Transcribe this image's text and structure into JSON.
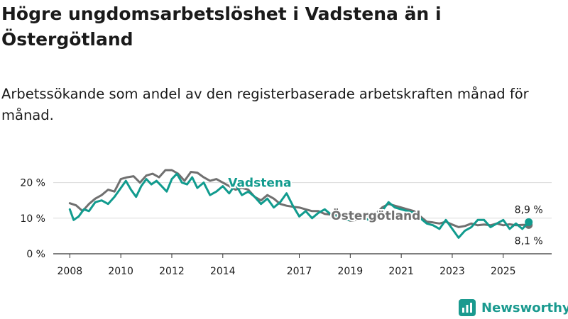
{
  "title": "Högre ungdomsarbetslöshet i Vadstena än i Östergötland",
  "subtitle": "Arbetssökande som andel av den registerbaserade arbetskraften månad för månad.",
  "brand": {
    "name": "Newsworthy"
  },
  "colors": {
    "vadstena": "#119b8e",
    "ostergotland": "#707070",
    "grid": "#d9d9d9",
    "axis": "#333333",
    "brand": "#1a9a8f"
  },
  "chart_data": {
    "type": "line",
    "y_ticks": [
      {
        "value": 0,
        "label": "0 %"
      },
      {
        "value": 10,
        "label": "10 %"
      },
      {
        "value": 20,
        "label": "20 %"
      }
    ],
    "x_ticks": [
      {
        "value": 2008,
        "label": "2008"
      },
      {
        "value": 2010,
        "label": "2010"
      },
      {
        "value": 2012,
        "label": "2012"
      },
      {
        "value": 2014,
        "label": "2014"
      },
      {
        "value": 2017,
        "label": "2017"
      },
      {
        "value": 2019,
        "label": "2019"
      },
      {
        "value": 2021,
        "label": "2021"
      },
      {
        "value": 2023,
        "label": "2023"
      },
      {
        "value": 2025,
        "label": "2025"
      }
    ],
    "xlim": [
      2007.35,
      2026.9
    ],
    "ylim": [
      0,
      25.5
    ],
    "series": [
      {
        "name": "Östergötland",
        "label": "Östergötland",
        "color": "#707070",
        "end_label": "8,1 %",
        "points": [
          [
            2008.0,
            14.2
          ],
          [
            2008.25,
            13.6
          ],
          [
            2008.5,
            12.0
          ],
          [
            2008.75,
            14.0
          ],
          [
            2009.0,
            15.5
          ],
          [
            2009.25,
            16.5
          ],
          [
            2009.5,
            18.0
          ],
          [
            2009.75,
            17.5
          ],
          [
            2010.0,
            21.0
          ],
          [
            2010.25,
            21.5
          ],
          [
            2010.5,
            21.8
          ],
          [
            2010.75,
            20.0
          ],
          [
            2011.0,
            22.0
          ],
          [
            2011.25,
            22.5
          ],
          [
            2011.5,
            21.5
          ],
          [
            2011.75,
            23.5
          ],
          [
            2012.0,
            23.5
          ],
          [
            2012.25,
            22.5
          ],
          [
            2012.5,
            20.5
          ],
          [
            2012.75,
            23.0
          ],
          [
            2013.0,
            22.8
          ],
          [
            2013.25,
            21.5
          ],
          [
            2013.5,
            20.5
          ],
          [
            2013.75,
            21.0
          ],
          [
            2014.0,
            20.0
          ],
          [
            2014.25,
            19.0
          ],
          [
            2014.5,
            18.0
          ],
          [
            2014.75,
            18.5
          ],
          [
            2015.0,
            18.0
          ],
          [
            2015.25,
            16.0
          ],
          [
            2015.5,
            15.0
          ],
          [
            2015.75,
            16.5
          ],
          [
            2016.0,
            15.5
          ],
          [
            2016.25,
            14.0
          ],
          [
            2016.5,
            13.5
          ],
          [
            2016.75,
            13.2
          ],
          [
            2017.0,
            13.0
          ],
          [
            2017.25,
            12.5
          ],
          [
            2017.5,
            12.0
          ],
          [
            2017.75,
            12.0
          ],
          [
            2018.0,
            11.2
          ],
          [
            2018.25,
            11.0
          ],
          [
            2018.5,
            10.8
          ],
          [
            2018.75,
            10.0
          ],
          [
            2019.0,
            9.3
          ],
          [
            2019.25,
            9.5
          ],
          [
            2019.5,
            10.5
          ],
          [
            2019.75,
            11.0
          ],
          [
            2020.0,
            11.2
          ],
          [
            2020.25,
            13.0
          ],
          [
            2020.5,
            14.0
          ],
          [
            2020.75,
            13.5
          ],
          [
            2021.0,
            13.0
          ],
          [
            2021.25,
            12.5
          ],
          [
            2021.5,
            12.0
          ],
          [
            2021.75,
            10.5
          ],
          [
            2022.0,
            9.0
          ],
          [
            2022.25,
            8.8
          ],
          [
            2022.5,
            8.5
          ],
          [
            2022.75,
            9.0
          ],
          [
            2023.0,
            8.2
          ],
          [
            2023.25,
            7.5
          ],
          [
            2023.5,
            7.8
          ],
          [
            2023.75,
            8.5
          ],
          [
            2024.0,
            8.0
          ],
          [
            2024.25,
            8.2
          ],
          [
            2024.5,
            8.0
          ],
          [
            2024.75,
            8.5
          ],
          [
            2025.0,
            8.0
          ],
          [
            2025.25,
            8.3
          ],
          [
            2025.5,
            8.0
          ],
          [
            2025.75,
            8.1
          ],
          [
            2026.0,
            8.1
          ]
        ]
      },
      {
        "name": "Vadstena",
        "label": "Vadstena",
        "color": "#119b8e",
        "end_label": "8,9 %",
        "points": [
          [
            2008.0,
            12.5
          ],
          [
            2008.15,
            9.5
          ],
          [
            2008.35,
            10.5
          ],
          [
            2008.55,
            12.5
          ],
          [
            2008.75,
            12.0
          ],
          [
            2009.0,
            14.5
          ],
          [
            2009.25,
            15.0
          ],
          [
            2009.5,
            14.0
          ],
          [
            2009.75,
            16.0
          ],
          [
            2010.0,
            18.5
          ],
          [
            2010.2,
            20.5
          ],
          [
            2010.4,
            18.0
          ],
          [
            2010.6,
            16.0
          ],
          [
            2010.8,
            19.0
          ],
          [
            2011.0,
            21.0
          ],
          [
            2011.2,
            19.5
          ],
          [
            2011.4,
            20.5
          ],
          [
            2011.6,
            19.0
          ],
          [
            2011.8,
            17.5
          ],
          [
            2012.0,
            21.0
          ],
          [
            2012.2,
            22.5
          ],
          [
            2012.4,
            20.0
          ],
          [
            2012.6,
            19.5
          ],
          [
            2012.8,
            21.5
          ],
          [
            2013.0,
            18.5
          ],
          [
            2013.25,
            20.0
          ],
          [
            2013.5,
            16.5
          ],
          [
            2013.75,
            17.5
          ],
          [
            2014.0,
            19.0
          ],
          [
            2014.25,
            17.0
          ],
          [
            2014.5,
            19.5
          ],
          [
            2014.75,
            16.5
          ],
          [
            2015.0,
            17.5
          ],
          [
            2015.25,
            16.0
          ],
          [
            2015.5,
            14.0
          ],
          [
            2015.75,
            15.5
          ],
          [
            2016.0,
            13.0
          ],
          [
            2016.25,
            14.5
          ],
          [
            2016.5,
            17.0
          ],
          [
            2016.75,
            13.5
          ],
          [
            2017.0,
            10.5
          ],
          [
            2017.25,
            12.0
          ],
          [
            2017.5,
            10.0
          ],
          [
            2017.75,
            11.5
          ],
          [
            2018.0,
            12.5
          ],
          [
            2018.25,
            11.0
          ],
          [
            2018.5,
            10.5
          ],
          [
            2018.75,
            9.5
          ],
          [
            2019.0,
            9.5
          ],
          [
            2019.25,
            11.0
          ],
          [
            2019.5,
            10.0
          ],
          [
            2019.75,
            9.5
          ],
          [
            2020.0,
            11.0
          ],
          [
            2020.25,
            12.0
          ],
          [
            2020.5,
            14.5
          ],
          [
            2020.75,
            13.0
          ],
          [
            2021.0,
            12.5
          ],
          [
            2021.25,
            12.0
          ],
          [
            2021.5,
            11.5
          ],
          [
            2021.75,
            10.0
          ],
          [
            2022.0,
            8.5
          ],
          [
            2022.25,
            8.0
          ],
          [
            2022.5,
            7.0
          ],
          [
            2022.75,
            9.5
          ],
          [
            2023.0,
            7.0
          ],
          [
            2023.25,
            4.5
          ],
          [
            2023.5,
            6.5
          ],
          [
            2023.75,
            7.5
          ],
          [
            2024.0,
            9.5
          ],
          [
            2024.25,
            9.5
          ],
          [
            2024.5,
            7.5
          ],
          [
            2024.75,
            8.5
          ],
          [
            2025.0,
            9.5
          ],
          [
            2025.25,
            7.0
          ],
          [
            2025.5,
            8.5
          ],
          [
            2025.75,
            7.0
          ],
          [
            2026.0,
            8.9
          ]
        ]
      }
    ]
  }
}
